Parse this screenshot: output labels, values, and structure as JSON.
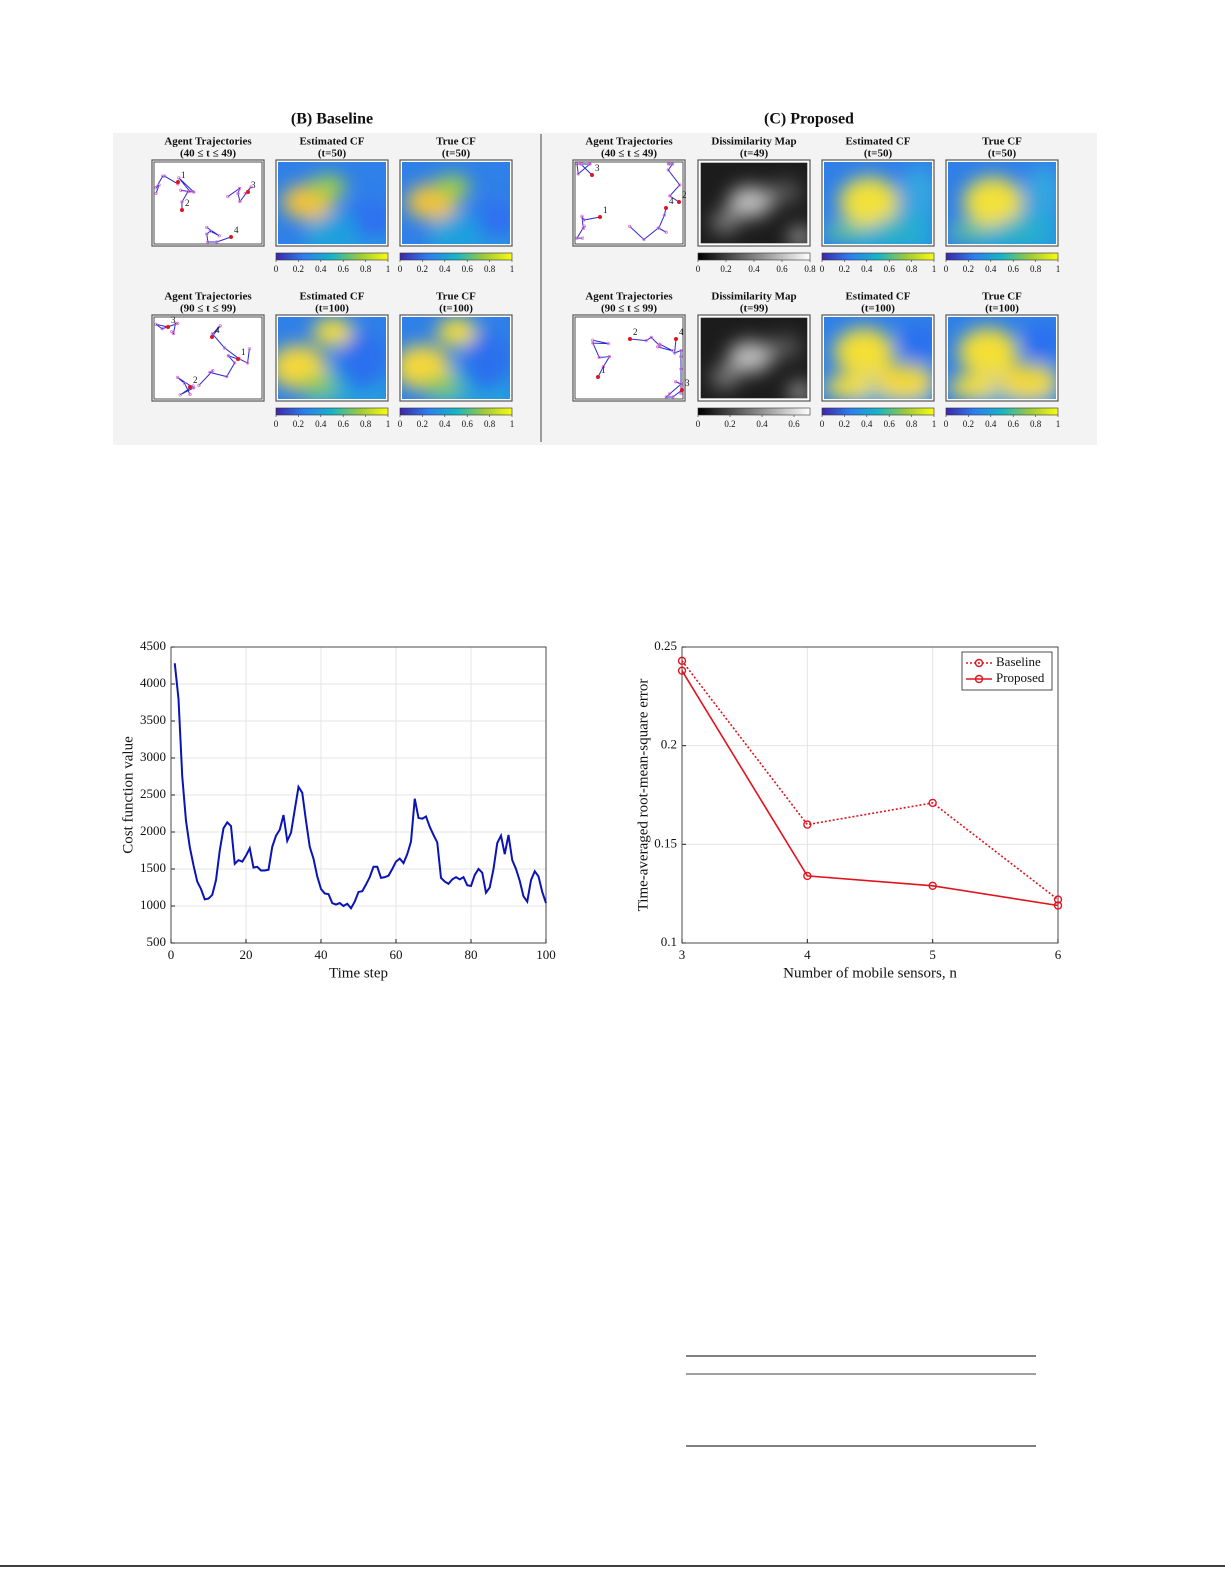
{
  "figure": {
    "panels": [
      {
        "title": "(B) Baseline",
        "rows": [
          [
            {
              "title": "Agent Trajectories",
              "subtitle": "(40 ≤ t ≤ 49)",
              "agents": [
                "1",
                "2",
                "3",
                "4"
              ]
            },
            {
              "title": "Estimated CF",
              "subtitle": "(t=50)",
              "colormap": "parula",
              "clim": [
                0,
                1
              ],
              "colorbar": [
                0,
                0.2,
                0.4,
                0.6,
                0.8,
                1
              ]
            },
            {
              "title": "True CF",
              "subtitle": "(t=50)",
              "colormap": "parula",
              "clim": [
                0,
                1
              ],
              "colorbar": [
                0,
                0.2,
                0.4,
                0.6,
                0.8,
                1
              ]
            }
          ],
          [
            {
              "title": "Agent Trajectories",
              "subtitle": "(90 ≤ t ≤ 99)",
              "agents": [
                "3",
                "4",
                "1",
                "2"
              ]
            },
            {
              "title": "Estimated CF",
              "subtitle": "(t=100)",
              "colormap": "parula",
              "clim": [
                0,
                1
              ],
              "colorbar": [
                0,
                0.2,
                0.4,
                0.6,
                0.8,
                1
              ]
            },
            {
              "title": "True CF",
              "subtitle": "(t=100)",
              "colormap": "parula",
              "clim": [
                0,
                1
              ],
              "colorbar": [
                0,
                0.2,
                0.4,
                0.6,
                0.8,
                1
              ]
            }
          ]
        ]
      },
      {
        "title": "(C) Proposed",
        "rows": [
          [
            {
              "title": "Agent Trajectories",
              "subtitle": "(40 ≤ t ≤ 49)",
              "agents": [
                "3",
                "2",
                "4",
                "1"
              ]
            },
            {
              "title": "Dissimilarity Map",
              "subtitle": "(t=49)",
              "colormap": "gray",
              "clim": [
                0,
                0.8
              ],
              "colorbar": [
                0,
                0.2,
                0.4,
                0.6,
                0.8
              ]
            },
            {
              "title": "Estimated CF",
              "subtitle": "(t=50)",
              "colormap": "parula",
              "clim": [
                0,
                1
              ],
              "colorbar": [
                0,
                0.2,
                0.4,
                0.6,
                0.8,
                1
              ]
            },
            {
              "title": "True CF",
              "subtitle": "(t=50)",
              "colormap": "parula",
              "clim": [
                0,
                1
              ],
              "colorbar": [
                0,
                0.2,
                0.4,
                0.6,
                0.8,
                1
              ]
            }
          ],
          [
            {
              "title": "Agent Trajectories",
              "subtitle": "(90 ≤ t ≤ 99)",
              "agents": [
                "4",
                "2",
                "1",
                "3"
              ]
            },
            {
              "title": "Dissimilarity Map",
              "subtitle": "(t=99)",
              "colormap": "gray",
              "clim": [
                0,
                0.7
              ],
              "colorbar": [
                0,
                0.2,
                0.4,
                0.6
              ]
            },
            {
              "title": "Estimated CF",
              "subtitle": "(t=100)",
              "colormap": "parula",
              "clim": [
                0,
                1
              ],
              "colorbar": [
                0,
                0.2,
                0.4,
                0.6,
                0.8,
                1
              ]
            },
            {
              "title": "True CF",
              "subtitle": "(t=100)",
              "colormap": "parula",
              "clim": [
                0,
                1
              ],
              "colorbar": [
                0,
                0.2,
                0.4,
                0.6,
                0.8,
                1
              ]
            }
          ]
        ]
      }
    ]
  },
  "chart_data": [
    {
      "type": "line",
      "x_label": "Time step",
      "y_label": "Cost function value",
      "color": "#0a14b4",
      "grid": true,
      "x": [
        1,
        2,
        3,
        4,
        5,
        6,
        7,
        8,
        9,
        10,
        11,
        12,
        13,
        14,
        15,
        16,
        17,
        18,
        19,
        20,
        21,
        22,
        23,
        24,
        25,
        26,
        27,
        28,
        29,
        30,
        31,
        32,
        33,
        34,
        35,
        36,
        37,
        38,
        39,
        40,
        41,
        42,
        43,
        44,
        45,
        46,
        47,
        48,
        49,
        50,
        51,
        52,
        53,
        54,
        55,
        56,
        57,
        58,
        59,
        60,
        61,
        62,
        63,
        64,
        65,
        66,
        67,
        68,
        69,
        70,
        71,
        72,
        73,
        74,
        75,
        76,
        77,
        78,
        79,
        80,
        81,
        82,
        83,
        84,
        85,
        86,
        87,
        88,
        89,
        90,
        91,
        92,
        93,
        94,
        95,
        96,
        97,
        98,
        99,
        100
      ],
      "values": [
        4280,
        3800,
        2750,
        2150,
        1800,
        1550,
        1330,
        1230,
        1090,
        1100,
        1150,
        1350,
        1750,
        2050,
        2130,
        2080,
        1570,
        1620,
        1600,
        1680,
        1780,
        1520,
        1530,
        1480,
        1480,
        1490,
        1800,
        1950,
        2030,
        2230,
        1880,
        1990,
        2300,
        2610,
        2530,
        2150,
        1800,
        1640,
        1400,
        1230,
        1170,
        1160,
        1040,
        1020,
        1040,
        1000,
        1030,
        970,
        1060,
        1190,
        1200,
        1290,
        1390,
        1530,
        1530,
        1380,
        1390,
        1410,
        1500,
        1600,
        1640,
        1580,
        1700,
        1870,
        2450,
        2190,
        2180,
        2210,
        2070,
        1960,
        1860,
        1380,
        1330,
        1300,
        1360,
        1390,
        1360,
        1390,
        1280,
        1270,
        1420,
        1500,
        1450,
        1180,
        1250,
        1500,
        1850,
        1950,
        1700,
        1960,
        1620,
        1500,
        1340,
        1130,
        1060,
        1350,
        1470,
        1400,
        1190,
        1040
      ],
      "xlim": [
        0,
        100
      ],
      "xticks": [
        0,
        20,
        40,
        60,
        80,
        100
      ],
      "ylim": [
        500,
        4500
      ],
      "yticks": [
        500,
        1000,
        1500,
        2000,
        2500,
        3000,
        3500,
        4000,
        4500
      ]
    },
    {
      "type": "line",
      "x_label": "Number of mobile sensors, n",
      "y_label": "Time-averaged root-mean-square error",
      "grid": true,
      "legend": "northeast",
      "marker": "circle",
      "x": [
        3,
        4,
        5,
        6
      ],
      "series": [
        {
          "name": "Baseline",
          "color": "#e0141e",
          "linestyle": "dotted",
          "values": [
            0.243,
            0.16,
            0.171,
            0.122
          ]
        },
        {
          "name": "Proposed",
          "color": "#e0141e",
          "linestyle": "solid",
          "values": [
            0.238,
            0.134,
            0.129,
            0.119
          ]
        }
      ],
      "xlim": [
        3,
        6
      ],
      "xticks": [
        3,
        4,
        5,
        6
      ],
      "ylim": [
        0.1,
        0.25
      ],
      "yticks": [
        0.1,
        0.15,
        0.2,
        0.25
      ]
    }
  ]
}
